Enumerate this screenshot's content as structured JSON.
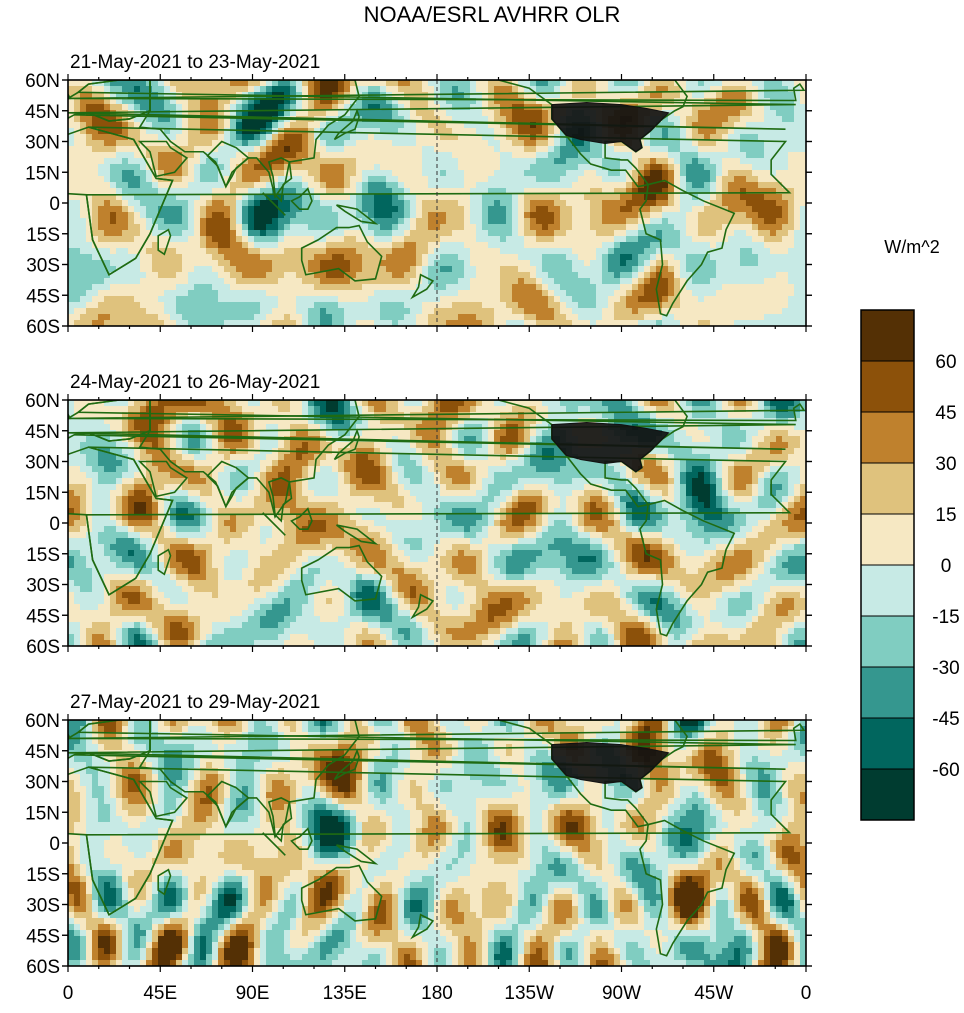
{
  "figure": {
    "title": "NOAA/ESRL AVHRR OLR",
    "colorbar_units": "W/m^2"
  },
  "panels": [
    {
      "id": "p1",
      "label": "21-May-2021 to 23-May-2021",
      "seed": 11
    },
    {
      "id": "p2",
      "label": "24-May-2021 to 26-May-2021",
      "seed": 29
    },
    {
      "id": "p3",
      "label": "27-May-2021 to 29-May-2021",
      "seed": 47
    }
  ],
  "axes": {
    "lat_ticks": [
      "60N",
      "45N",
      "30N",
      "15N",
      "0",
      "15S",
      "30S",
      "45S",
      "60S"
    ],
    "lon_ticks": [
      "0",
      "45E",
      "90E",
      "135E",
      "180",
      "135W",
      "90W",
      "45W",
      "0"
    ],
    "lon_range": [
      0,
      360
    ],
    "lat_range": [
      60,
      -60
    ],
    "dateline": 180
  },
  "colorbar": {
    "labels": [
      "60",
      "45",
      "30",
      "15",
      "0",
      "-15",
      "-30",
      "-45",
      "-60"
    ],
    "bins": [
      {
        "range": "> 60",
        "color": "#543005"
      },
      {
        "range": "45 to 60",
        "color": "#8c510a"
      },
      {
        "range": "30 to 45",
        "color": "#bf812d"
      },
      {
        "range": "15 to 30",
        "color": "#dfc27d"
      },
      {
        "range": "0 to 15",
        "color": "#f6e8c3"
      },
      {
        "range": "-15 to 0",
        "color": "#c7eae5"
      },
      {
        "range": "-30 to -15",
        "color": "#80cdc1"
      },
      {
        "range": "-45 to -30",
        "color": "#35978f"
      },
      {
        "range": "-60 to -45",
        "color": "#01665e"
      },
      {
        "range": "< -60",
        "color": "#003c30"
      }
    ]
  },
  "colors": {
    "coastline": "#1f6b12",
    "us_states": "#111111"
  }
}
